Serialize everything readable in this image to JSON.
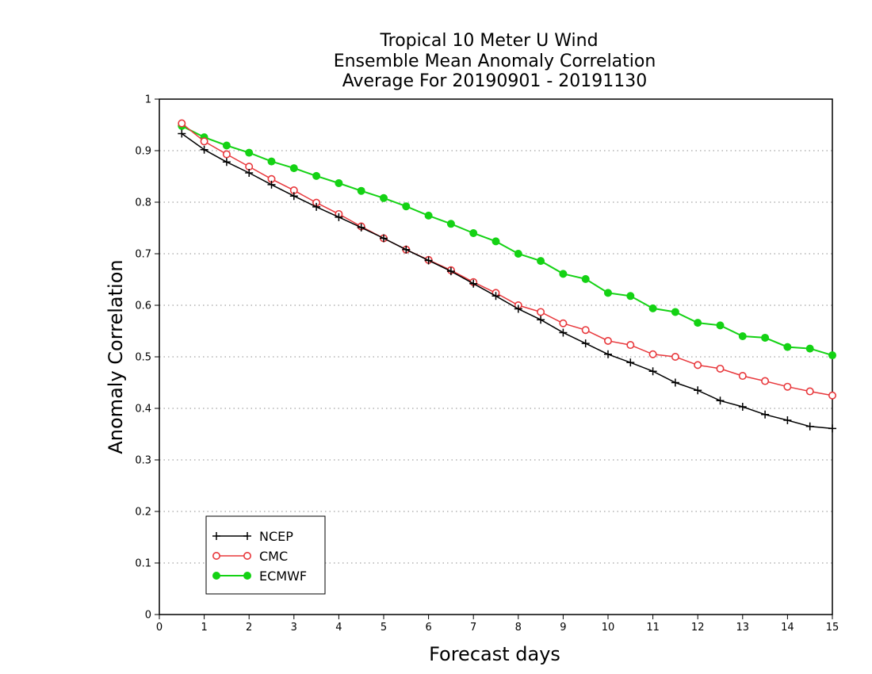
{
  "chart_data": {
    "type": "line",
    "title": [
      "Tropical 10 Meter U Wind",
      "Ensemble Mean Anomaly Correlation",
      "Average For 20190901 - 20191130"
    ],
    "xlabel": "Forecast days",
    "ylabel": "Anomaly Correlation",
    "xlim": [
      0,
      15
    ],
    "ylim": [
      0,
      1
    ],
    "xticks": [
      "0",
      "1",
      "2",
      "3",
      "4",
      "5",
      "6",
      "7",
      "8",
      "9",
      "10",
      "11",
      "12",
      "13",
      "14",
      "15"
    ],
    "yticks": [
      "0",
      "0.1",
      "0.2",
      "0.3",
      "0.4",
      "0.5",
      "0.6",
      "0.7",
      "0.8",
      "0.9",
      "1"
    ],
    "grid": "horizontal dotted",
    "legend_position": "bottom-left",
    "x": [
      0.5,
      1,
      1.5,
      2,
      2.5,
      3,
      3.5,
      4,
      4.5,
      5,
      5.5,
      6,
      6.5,
      7,
      7.5,
      8,
      8.5,
      9,
      9.5,
      10,
      10.5,
      11,
      11.5,
      12,
      12.5,
      13,
      13.5,
      14,
      14.5,
      15
    ],
    "series": [
      {
        "name": "NCEP",
        "color": "#000000",
        "marker": "plus",
        "values": [
          0.933,
          0.902,
          0.878,
          0.857,
          0.834,
          0.812,
          0.791,
          0.771,
          0.751,
          0.73,
          0.708,
          0.687,
          0.666,
          0.642,
          0.618,
          0.593,
          0.572,
          0.547,
          0.526,
          0.505,
          0.489,
          0.472,
          0.45,
          0.435,
          0.415,
          0.403,
          0.388,
          0.377,
          0.365,
          0.361
        ]
      },
      {
        "name": "CMC",
        "color": "#e8383c",
        "marker": "open-circle",
        "values": [
          0.953,
          0.918,
          0.893,
          0.869,
          0.845,
          0.823,
          0.799,
          0.777,
          0.753,
          0.73,
          0.708,
          0.688,
          0.668,
          0.645,
          0.624,
          0.6,
          0.587,
          0.565,
          0.552,
          0.531,
          0.523,
          0.505,
          0.5,
          0.484,
          0.477,
          0.463,
          0.453,
          0.442,
          0.433,
          0.425
        ]
      },
      {
        "name": "ECMWF",
        "color": "#14d214",
        "marker": "filled-circle",
        "values": [
          0.948,
          0.926,
          0.91,
          0.896,
          0.879,
          0.866,
          0.851,
          0.837,
          0.822,
          0.808,
          0.792,
          0.774,
          0.758,
          0.74,
          0.724,
          0.7,
          0.686,
          0.661,
          0.651,
          0.624,
          0.618,
          0.594,
          0.587,
          0.566,
          0.561,
          0.54,
          0.537,
          0.519,
          0.516,
          0.503
        ]
      }
    ]
  }
}
